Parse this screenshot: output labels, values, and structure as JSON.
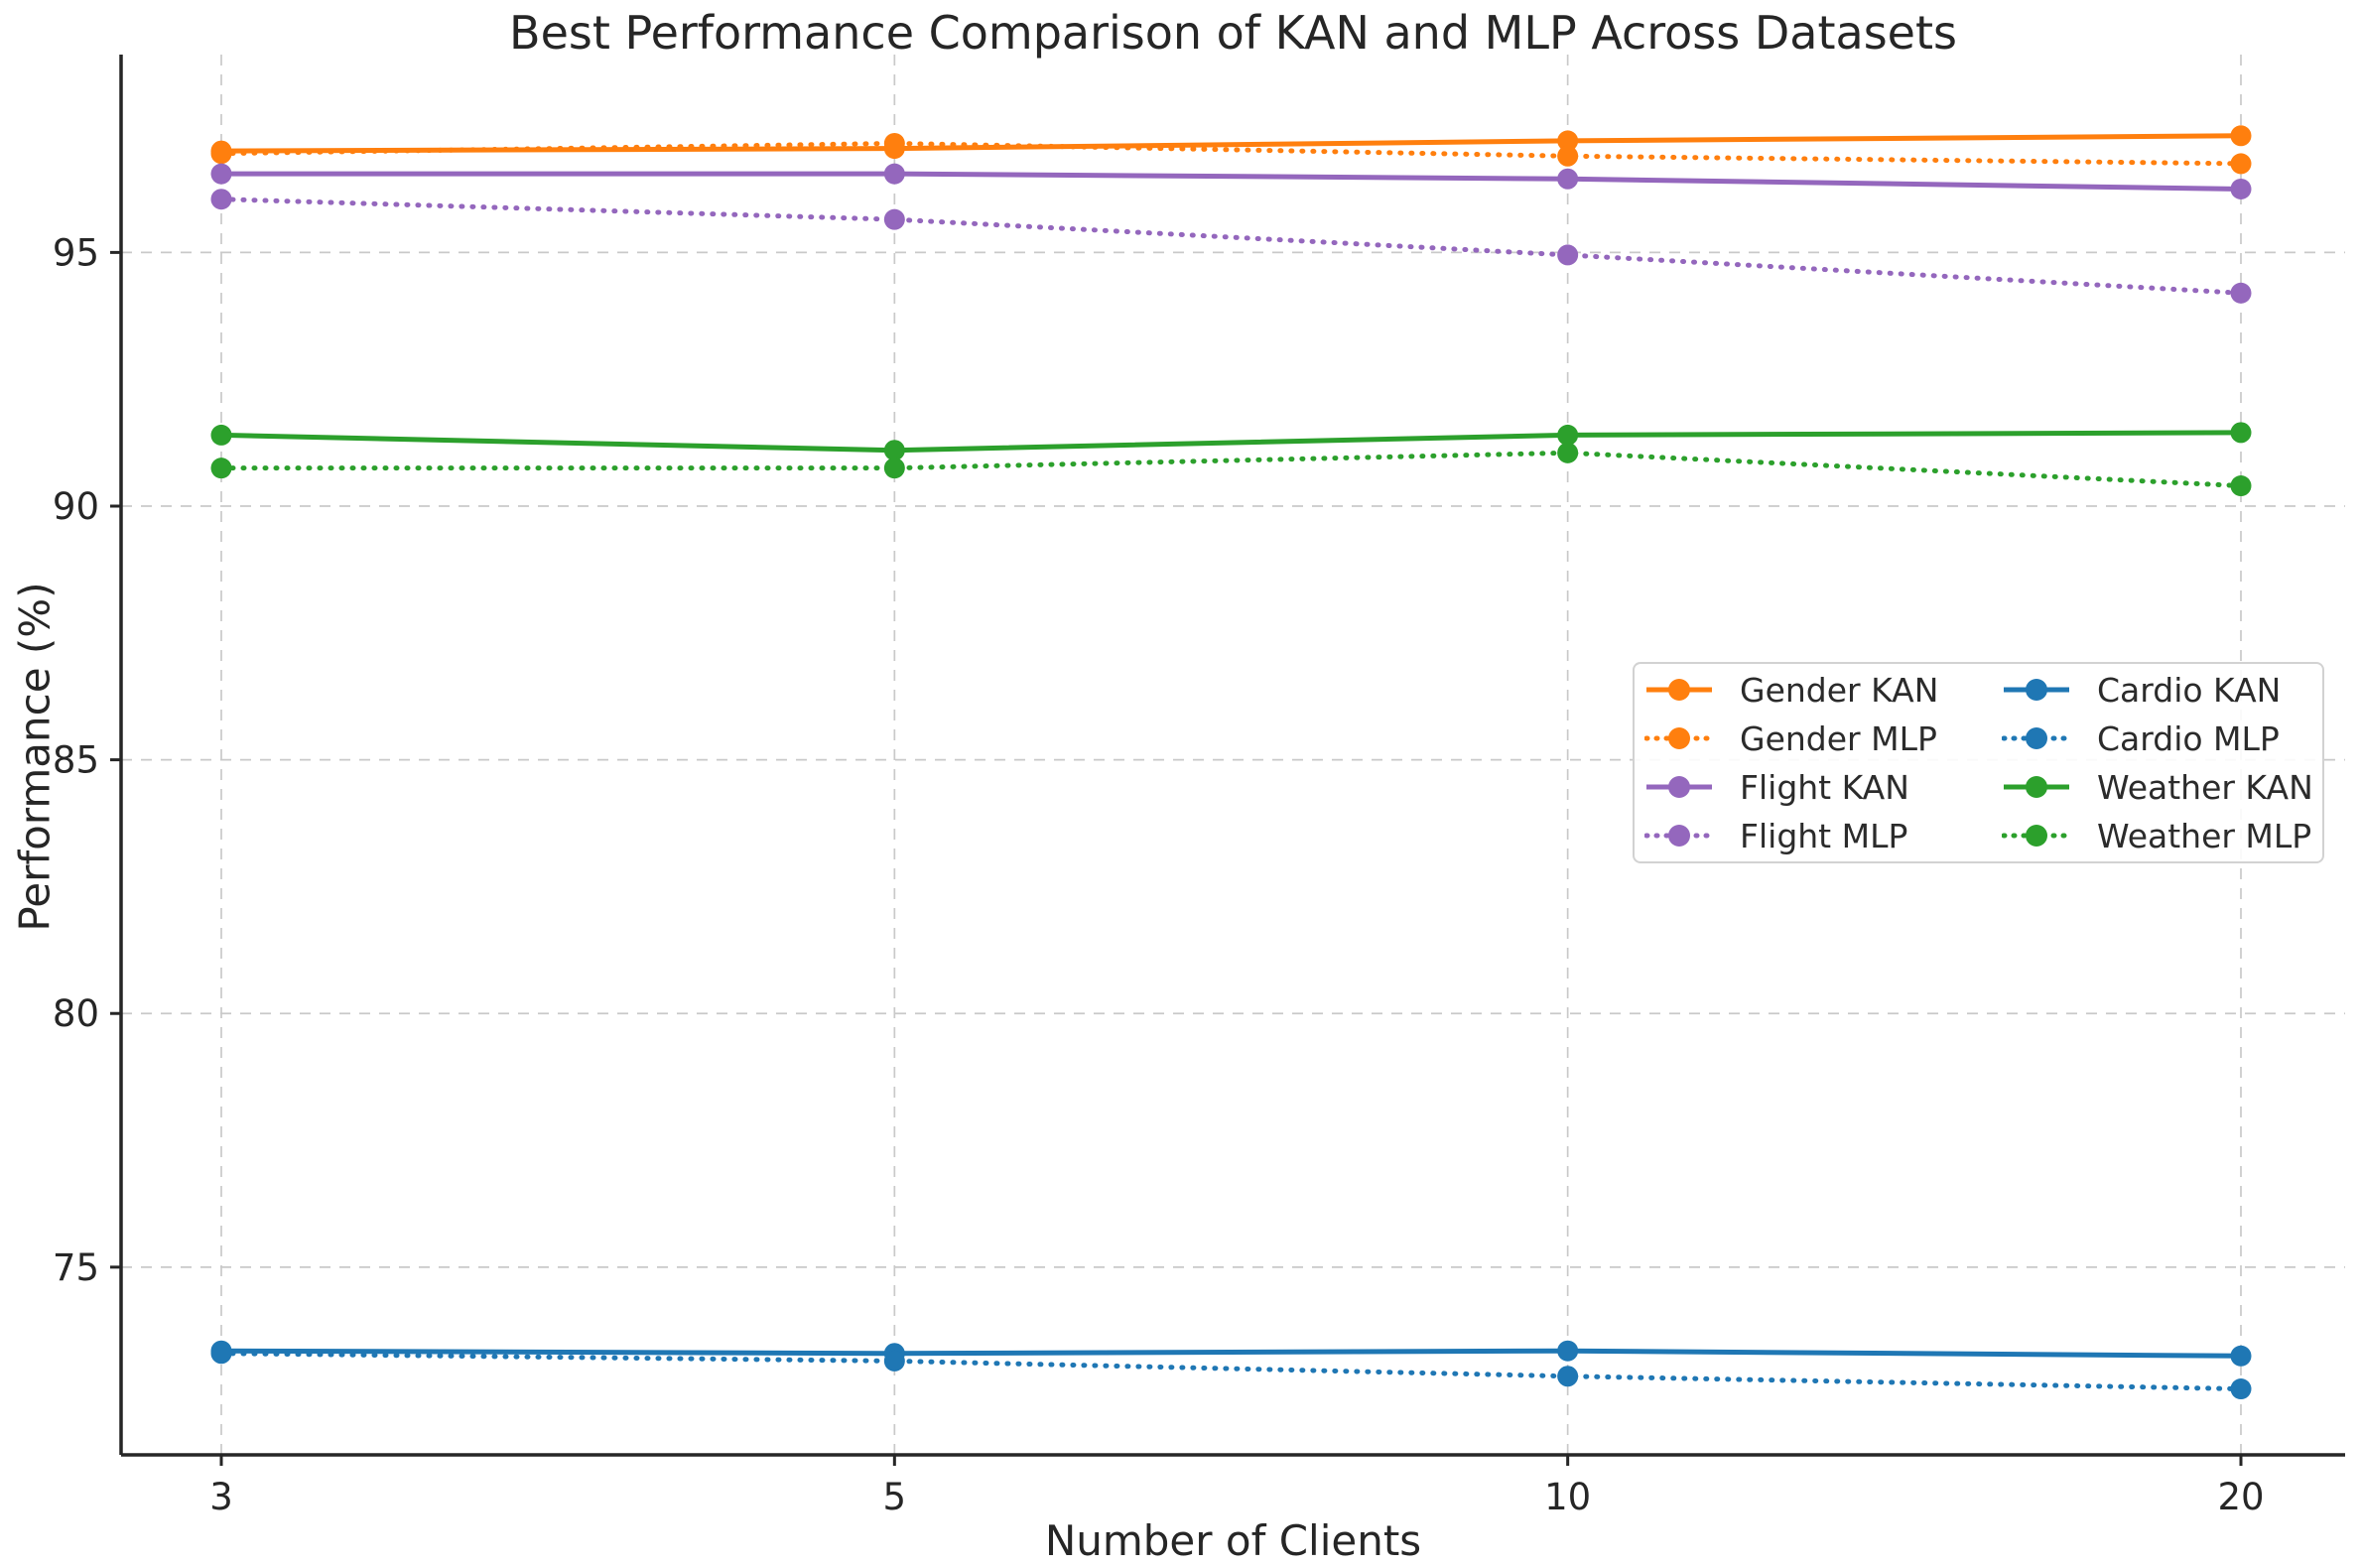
{
  "chart_data": {
    "type": "line",
    "title": "Best Performance Comparison of KAN and MLP Across Datasets",
    "xlabel": "Number of Clients",
    "ylabel": "Performance (%)",
    "categories": [
      3,
      5,
      10,
      20
    ],
    "x_tick_labels": [
      "3",
      "5",
      "10",
      "20"
    ],
    "y_ticks": [
      75,
      80,
      85,
      90,
      95
    ],
    "ylim": [
      71.3,
      98.9
    ],
    "grid": true,
    "grid_style": "dashed",
    "legend_position": "center-right",
    "legend_columns": 2,
    "series": [
      {
        "name": "Gender KAN",
        "color": "#ff7f0e",
        "style": "solid",
        "values": [
          97.0,
          97.05,
          97.2,
          97.3
        ]
      },
      {
        "name": "Gender MLP",
        "color": "#ff7f0e",
        "style": "dotted",
        "values": [
          96.95,
          97.15,
          96.9,
          96.75
        ]
      },
      {
        "name": "Flight KAN",
        "color": "#9467bd",
        "style": "solid",
        "values": [
          96.55,
          96.55,
          96.45,
          96.25
        ]
      },
      {
        "name": "Flight MLP",
        "color": "#9467bd",
        "style": "dotted",
        "values": [
          96.05,
          95.65,
          94.95,
          94.2
        ]
      },
      {
        "name": "Cardio KAN",
        "color": "#1f77b4",
        "style": "solid",
        "values": [
          73.35,
          73.3,
          73.35,
          73.25
        ]
      },
      {
        "name": "Cardio MLP",
        "color": "#1f77b4",
        "style": "dotted",
        "values": [
          73.3,
          73.15,
          72.85,
          72.6
        ]
      },
      {
        "name": "Weather KAN",
        "color": "#2ca02c",
        "style": "solid",
        "values": [
          91.4,
          91.1,
          91.4,
          91.45
        ]
      },
      {
        "name": "Weather MLP",
        "color": "#2ca02c",
        "style": "dotted",
        "values": [
          90.75,
          90.75,
          91.05,
          90.4
        ]
      }
    ],
    "axis_color": "#262626",
    "grid_color": "#c9c9c9",
    "tick_label_color": "#262626"
  }
}
